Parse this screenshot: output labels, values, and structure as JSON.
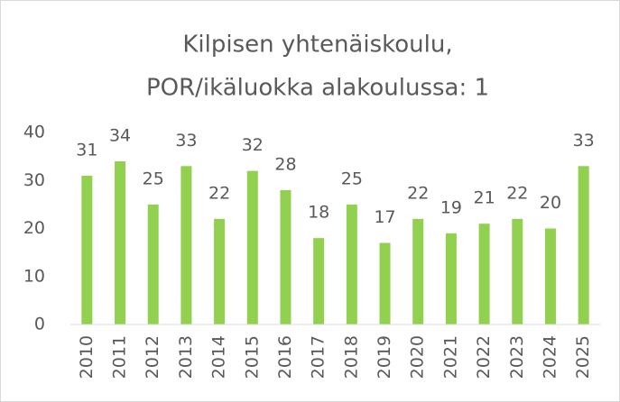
{
  "chart_data": {
    "type": "bar",
    "title": [
      "Kilpisen yhtenäiskoulu,",
      "POR/ikäluokka alakoulussa: 1"
    ],
    "categories": [
      "2010",
      "2011",
      "2012",
      "2013",
      "2014",
      "2015",
      "2016",
      "2017",
      "2018",
      "2019",
      "2020",
      "2021",
      "2022",
      "2023",
      "2024",
      "2025"
    ],
    "values": [
      31,
      34,
      25,
      33,
      22,
      32,
      28,
      18,
      25,
      17,
      22,
      19,
      21,
      22,
      20,
      33
    ],
    "color": "#92d050",
    "ylim": [
      0,
      40
    ],
    "yticks": [
      0,
      10,
      20,
      30,
      40
    ],
    "grid": false
  }
}
